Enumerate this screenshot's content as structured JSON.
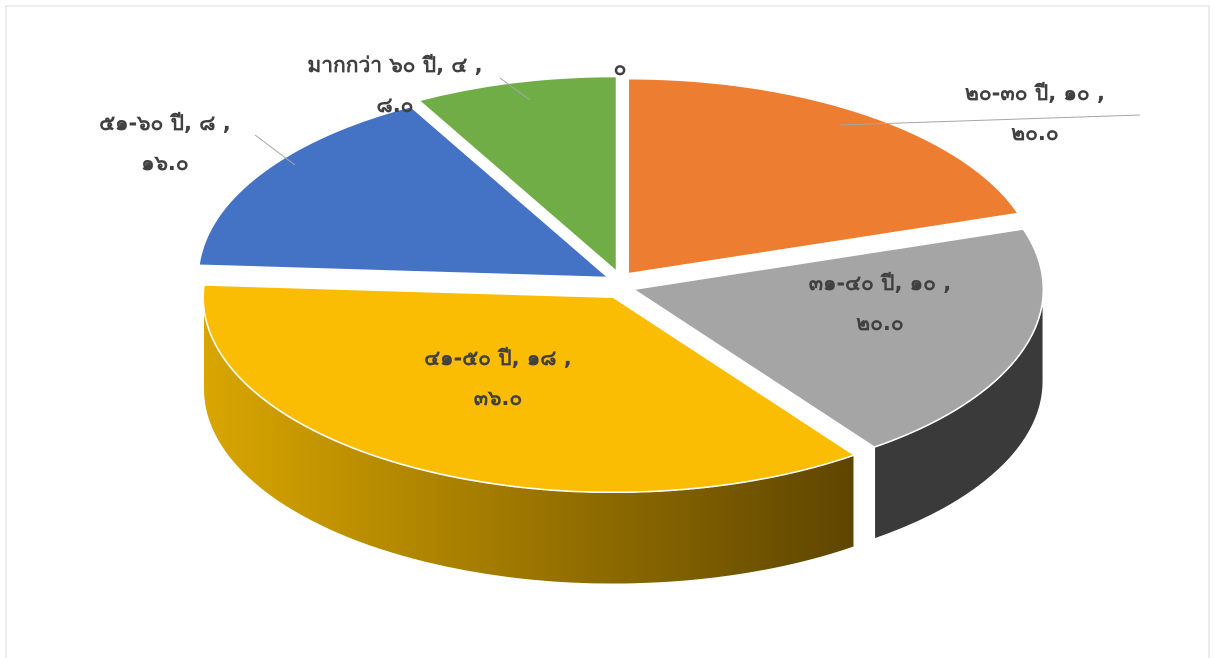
{
  "chart_data": {
    "type": "pie3d",
    "categories": [
      null,
      "๒๐-๓๐ ปี",
      "๓๑-๔๐ ปี",
      "๔๑-๕๐ ปี",
      "๕๑-๖๐ ปี",
      "มากกว่า ๖๐ ปี"
    ],
    "counts": [
      0,
      10,
      10,
      18,
      8,
      4
    ],
    "count_labels": [
      null,
      "๑๐",
      "๑๐",
      "๑๘",
      "๘",
      "๔"
    ],
    "values": [
      0,
      20,
      20,
      36,
      16,
      8
    ],
    "value_labels": [
      "๐",
      "๒๐.๐",
      "๒๐.๐",
      "๓๖.๐",
      "๑๖.๐",
      "๘.๐"
    ],
    "separators": [
      ", ",
      " ,"
    ],
    "colors": [
      "#5b9bd5",
      "#ed7d31",
      "#a5a5a5",
      "#fbbc04",
      "#4472c4",
      "#70ad47"
    ]
  }
}
